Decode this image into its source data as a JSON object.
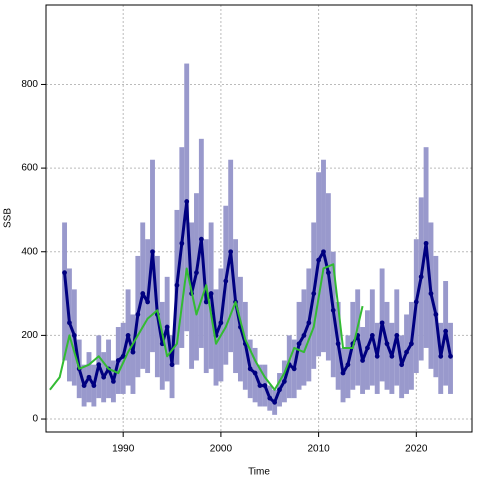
{
  "chart_data": {
    "type": "line",
    "xlabel": "Time",
    "ylabel": "SSB",
    "xlim": [
      1982.1,
      2025.7
    ],
    "ylim": [
      -31,
      990
    ],
    "xticks": [
      1990,
      2000,
      2010,
      2020
    ],
    "yticks": [
      0,
      200,
      400,
      600,
      800
    ],
    "grid": true,
    "band_color": "#9999cc",
    "series": [
      {
        "color": "#000080",
        "x": [
          1984.0,
          1984.5,
          1985.0,
          1985.5,
          1986.0,
          1986.5,
          1987.0,
          1987.5,
          1988.0,
          1988.5,
          1989.0,
          1989.5,
          1990.0,
          1990.5,
          1991.0,
          1991.5,
          1992.0,
          1992.5,
          1993.0,
          1993.5,
          1994.0,
          1994.5,
          1995.0,
          1995.5,
          1996.0,
          1996.5,
          1997.0,
          1997.5,
          1998.0,
          1998.5,
          1999.0,
          1999.5,
          2000.0,
          2000.5,
          2001.0,
          2001.5,
          2002.0,
          2002.5,
          2003.0,
          2003.5,
          2004.0,
          2004.5,
          2005.0,
          2005.5,
          2006.0,
          2006.5,
          2007.0,
          2007.5,
          2008.0,
          2008.5,
          2009.0,
          2009.5,
          2010.0,
          2010.5,
          2011.0,
          2011.5,
          2012.0,
          2012.5,
          2013.0,
          2013.5,
          2014.0,
          2014.5,
          2015.0,
          2015.5,
          2016.0,
          2016.5,
          2017.0,
          2017.5,
          2018.0,
          2018.5,
          2019.0,
          2019.5,
          2020.0,
          2020.5,
          2021.0,
          2021.5,
          2022.0,
          2022.5,
          2023.0,
          2023.5
        ],
        "values": [
          350,
          230,
          200,
          120,
          80,
          100,
          80,
          130,
          100,
          120,
          90,
          140,
          150,
          200,
          160,
          250,
          300,
          280,
          400,
          250,
          180,
          220,
          130,
          320,
          420,
          520,
          300,
          350,
          430,
          280,
          300,
          200,
          230,
          330,
          400,
          280,
          220,
          180,
          120,
          110,
          80,
          80,
          50,
          40,
          70,
          90,
          130,
          120,
          180,
          200,
          230,
          300,
          380,
          400,
          350,
          260,
          180,
          110,
          130,
          180,
          200,
          140,
          170,
          200,
          150,
          230,
          180,
          150,
          200,
          130,
          160,
          180,
          280,
          340,
          420,
          300,
          250,
          150,
          210,
          150
        ],
        "lower": [
          140,
          90,
          80,
          50,
          30,
          40,
          30,
          50,
          40,
          50,
          40,
          60,
          60,
          80,
          60,
          100,
          120,
          110,
          160,
          100,
          70,
          90,
          50,
          130,
          170,
          210,
          120,
          140,
          170,
          110,
          120,
          80,
          90,
          130,
          160,
          110,
          90,
          70,
          50,
          40,
          30,
          30,
          20,
          10,
          30,
          40,
          50,
          50,
          70,
          80,
          90,
          120,
          150,
          160,
          140,
          100,
          70,
          40,
          50,
          70,
          80,
          60,
          70,
          80,
          60,
          90,
          70,
          60,
          80,
          50,
          60,
          70,
          110,
          140,
          170,
          120,
          100,
          60,
          80,
          60
        ],
        "upper": [
          470,
          360,
          310,
          190,
          130,
          160,
          130,
          200,
          160,
          190,
          140,
          220,
          230,
          310,
          250,
          390,
          470,
          430,
          620,
          390,
          280,
          340,
          200,
          500,
          650,
          850,
          470,
          540,
          670,
          430,
          470,
          310,
          360,
          510,
          620,
          430,
          340,
          280,
          190,
          170,
          130,
          130,
          80,
          70,
          110,
          140,
          200,
          190,
          280,
          310,
          360,
          470,
          590,
          620,
          540,
          400,
          280,
          170,
          200,
          280,
          310,
          220,
          260,
          310,
          230,
          360,
          280,
          230,
          310,
          200,
          250,
          280,
          430,
          530,
          650,
          470,
          390,
          230,
          330,
          230
        ]
      },
      {
        "color": "#33bb33",
        "x": [
          1982.5,
          1983.5,
          1984.5,
          1985.5,
          1986.5,
          1987.5,
          1988.5,
          1989.5,
          1990.5,
          1991.5,
          1992.5,
          1993.5,
          1994.5,
          1995.5,
          1996.5,
          1997.5,
          1998.5,
          1999.5,
          2000.5,
          2001.5,
          2002.5,
          2003.5,
          2004.5,
          2005.5,
          2006.5,
          2007.5,
          2008.5,
          2009.5,
          2010.5,
          2011.5,
          2012.5,
          2013.5,
          2014.5
        ],
        "values": [
          70,
          100,
          200,
          120,
          130,
          150,
          120,
          110,
          160,
          200,
          240,
          260,
          150,
          180,
          360,
          250,
          320,
          180,
          220,
          280,
          190,
          140,
          100,
          70,
          110,
          170,
          160,
          220,
          360,
          370,
          170,
          170,
          270
        ]
      }
    ]
  }
}
